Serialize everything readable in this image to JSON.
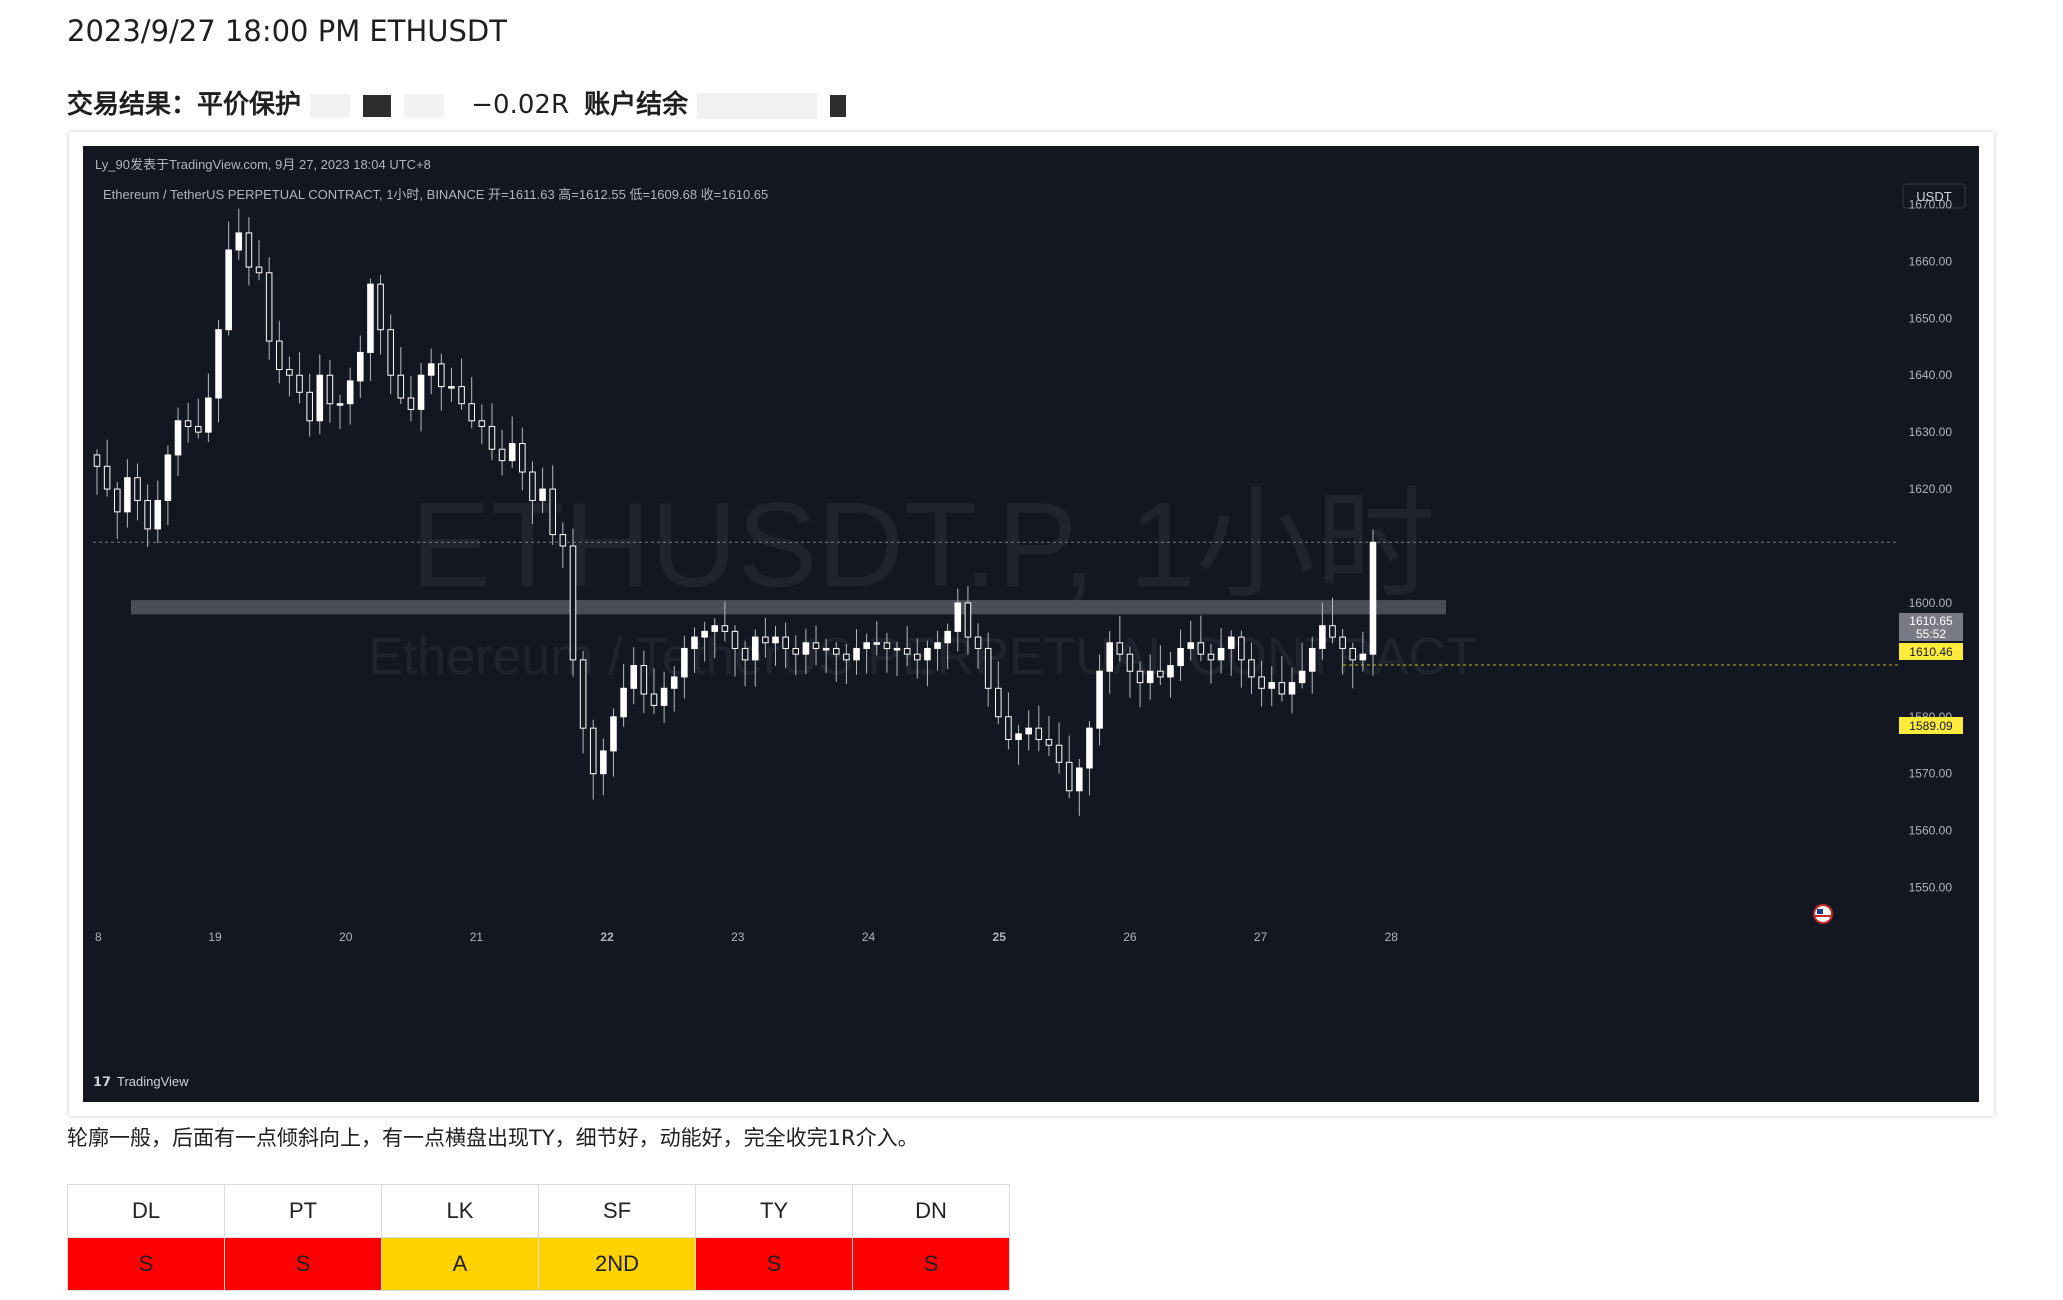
{
  "header": {
    "title": "2023/9/27 18:00 PM ETHUSDT",
    "result_label": "交易结果：平价保护",
    "r_value": "−0.02R",
    "account_label": "账户结余"
  },
  "tv": {
    "publisher": "Ly_90发表于TradingView.com,  9月 27, 2023 18:04 UTC+8",
    "symbol_line": "Ethereum / TetherUS PERPETUAL CONTRACT, 1小时, BINANCE  开=1611.63  高=1612.55  低=1609.68  收=1610.65",
    "currency": "USDT",
    "watermark_main": "ETHUSDT.P, 1小时",
    "watermark_sub": "Ethereum / TetherUS PERPETUAL CONTRACT",
    "brand": "TradingView",
    "price_tag_1": "1610.65",
    "price_tag_1_time": "55:52",
    "price_tag_2": "1610.46",
    "price_tag_3": "1589.09"
  },
  "chart_data": {
    "type": "candlestick",
    "title": "ETHUSDT.P, 1小时",
    "ylim": [
      1545,
      1675
    ],
    "y_ticks": [
      "1670.00",
      "1660.00",
      "1650.00",
      "1640.00",
      "1630.00",
      "1620.00",
      "1600.00",
      "1580.00",
      "1570.00",
      "1560.00",
      "1550.00"
    ],
    "x_ticks": [
      "8",
      "19",
      "20",
      "21",
      "22",
      "23",
      "24",
      "25",
      "26",
      "27",
      "28"
    ],
    "support_zone": [
      1598,
      1600.5
    ],
    "last_close": 1610.65,
    "level_line": 1589.09,
    "closes": [
      1624,
      1620,
      1616,
      1622,
      1618,
      1613,
      1618,
      1626,
      1632,
      1631,
      1630,
      1636,
      1648,
      1662,
      1665,
      1659,
      1658,
      1646,
      1641,
      1640,
      1637,
      1632,
      1640,
      1635,
      1635,
      1639,
      1644,
      1656,
      1648,
      1640,
      1636,
      1634,
      1640,
      1642,
      1638,
      1638,
      1635,
      1632,
      1631,
      1627,
      1625,
      1628,
      1623,
      1618,
      1620,
      1612,
      1610,
      1590,
      1578,
      1570,
      1574,
      1580,
      1585,
      1589,
      1584,
      1582,
      1585,
      1587,
      1592,
      1594,
      1595,
      1596,
      1595,
      1592,
      1590,
      1594,
      1593,
      1594,
      1592,
      1591,
      1593,
      1592,
      1592,
      1591,
      1590,
      1592,
      1593,
      1593,
      1592,
      1592,
      1591,
      1590,
      1592,
      1593,
      1595,
      1600,
      1594,
      1592,
      1585,
      1580,
      1576,
      1577,
      1578,
      1576,
      1575,
      1572,
      1567,
      1571,
      1578,
      1588,
      1593,
      1591,
      1588,
      1586,
      1588,
      1587,
      1589,
      1592,
      1593,
      1591,
      1590,
      1592,
      1594,
      1590,
      1587,
      1585,
      1586,
      1584,
      1586,
      1588,
      1592,
      1596,
      1594,
      1592,
      1590,
      1591,
      1610.65
    ],
    "series": [
      {
        "name": "ETHUSDT.P"
      }
    ]
  },
  "caption": "轮廓一般，后面有一点倾斜向上，有一点横盘出现TY，细节好，动能好，完全收完1R介入。",
  "grades": {
    "headers": [
      "DL",
      "PT",
      "LK",
      "SF",
      "TY",
      "DN"
    ],
    "values": [
      "S",
      "S",
      "A",
      "2ND",
      "S",
      "S"
    ],
    "colors": [
      "#ff0000",
      "#ff0000",
      "#ffd200",
      "#ffd200",
      "#ff0000",
      "#ff0000"
    ]
  }
}
